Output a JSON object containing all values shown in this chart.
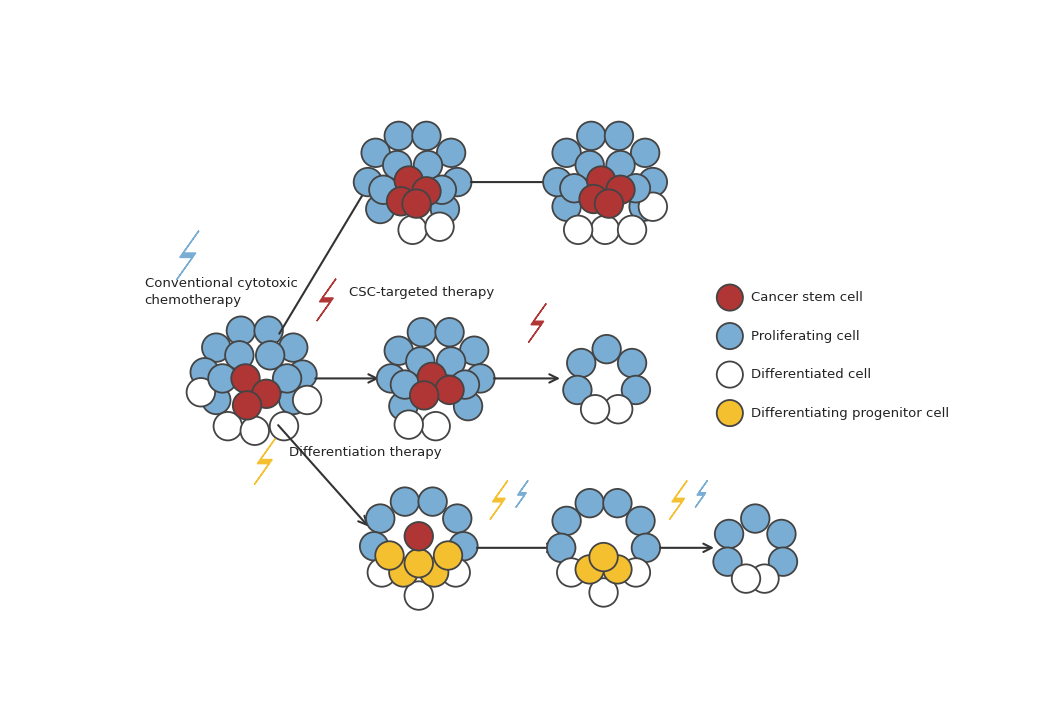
{
  "bg_color": "#ffffff",
  "cancer_stem_color": "#b03535",
  "proliferating_color": "#7aadd4",
  "differentiated_color": "#ffffff",
  "progenitor_color": "#f5c030",
  "cell_edge_color": "#444444",
  "cell_edge_width": 1.3,
  "arrow_color": "#333333",
  "blue_bolt_color": "#7aadd4",
  "red_bolt_color": "#b03535",
  "gold_bolt_color": "#f5c030",
  "legend_items": [
    {
      "label": "Cancer stem cell",
      "color": "#b03535"
    },
    {
      "label": "Proliferating cell",
      "color": "#7aadd4"
    },
    {
      "label": "Differentiated cell",
      "color": "#ffffff"
    },
    {
      "label": "Differentiating progenitor cell",
      "color": "#f5c030"
    }
  ],
  "texts": {
    "conventional": "Conventional cytotoxic\nchemotherapy",
    "csc": "CSC-targeted therapy",
    "differentiation": "Differentiation therapy"
  }
}
